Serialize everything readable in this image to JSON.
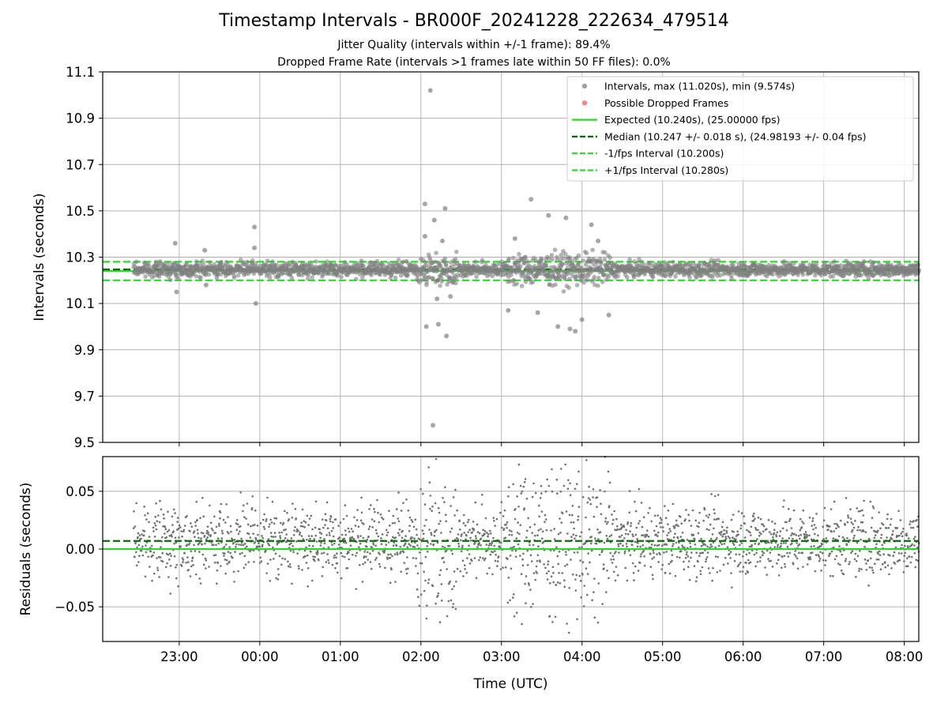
{
  "title": "Timestamp Intervals - BR000F_20241228_222634_479514",
  "subtitle_lines": [
    "Jitter Quality (intervals within +/-1 frame): 89.4%",
    "Dropped Frame Rate (intervals >1 frames late within 50 FF files): 0.0%"
  ],
  "chart_data": [
    {
      "type": "scatter",
      "panel": "intervals",
      "ylabel": "Intervals (seconds)",
      "xlabel": "",
      "ylim": [
        9.5,
        11.1
      ],
      "yticks": [
        "9.5",
        "9.7",
        "9.9",
        "10.1",
        "10.3",
        "10.5",
        "10.7",
        "10.9",
        "11.1"
      ],
      "xlim_hours": [
        -1.95,
        8.18
      ],
      "xticks_labels": [
        "23:00",
        "00:00",
        "01:00",
        "02:00",
        "03:00",
        "04:00",
        "05:00",
        "06:00",
        "07:00",
        "08:00"
      ],
      "grid": true,
      "legend_position": "top-right",
      "series": [
        {
          "name": "Intervals, max (11.020s), min (9.574s)",
          "kind": "points",
          "color": "#808080",
          "baseline_band": [
            10.205,
            10.285
          ],
          "start_time": "22:26",
          "end_time": "08:11",
          "mean_interval_s": 10.247,
          "visible_outliers": [
            {
              "t": "22:57",
              "y": 10.36
            },
            {
              "t": "22:58",
              "y": 10.15
            },
            {
              "t": "23:19",
              "y": 10.33
            },
            {
              "t": "23:20",
              "y": 10.18
            },
            {
              "t": "23:56",
              "y": 10.34
            },
            {
              "t": "23:56",
              "y": 10.43
            },
            {
              "t": "23:57",
              "y": 10.1
            },
            {
              "t": "02:03",
              "y": 10.39
            },
            {
              "t": "02:03",
              "y": 10.53
            },
            {
              "t": "02:04",
              "y": 10.0
            },
            {
              "t": "02:07",
              "y": 11.02
            },
            {
              "t": "02:10",
              "y": 10.46
            },
            {
              "t": "02:13",
              "y": 10.01
            },
            {
              "t": "02:18",
              "y": 10.51
            },
            {
              "t": "02:19",
              "y": 9.96
            },
            {
              "t": "02:09",
              "y": 9.574
            },
            {
              "t": "02:12",
              "y": 10.12
            },
            {
              "t": "02:16",
              "y": 10.37
            },
            {
              "t": "02:22",
              "y": 10.13
            },
            {
              "t": "03:22",
              "y": 10.55
            },
            {
              "t": "03:35",
              "y": 10.48
            },
            {
              "t": "03:48",
              "y": 10.47
            },
            {
              "t": "03:51",
              "y": 9.99
            },
            {
              "t": "03:55",
              "y": 9.98
            },
            {
              "t": "03:42",
              "y": 10.0
            },
            {
              "t": "04:00",
              "y": 10.03
            },
            {
              "t": "04:07",
              "y": 10.44
            },
            {
              "t": "04:12",
              "y": 10.37
            },
            {
              "t": "04:20",
              "y": 10.05
            },
            {
              "t": "03:27",
              "y": 10.06
            },
            {
              "t": "03:10",
              "y": 10.38
            },
            {
              "t": "03:05",
              "y": 10.07
            }
          ]
        },
        {
          "name": "Possible Dropped Frames",
          "kind": "points",
          "color": "#f0605a",
          "count": 0
        },
        {
          "name": "Expected (10.240s), (25.00000 fps)",
          "kind": "hline",
          "y": 10.24,
          "color": "#20e020",
          "style": "solid"
        },
        {
          "name": "Median (10.247 +/- 0.018 s), (24.98193 +/- 0.04 fps)",
          "kind": "hline",
          "y": 10.247,
          "color": "#007000",
          "style": "dashed"
        },
        {
          "name": "-1/fps Interval (10.200s)",
          "kind": "hline",
          "y": 10.2,
          "color": "#20e020",
          "style": "dashed"
        },
        {
          "name": "+1/fps Interval (10.280s)",
          "kind": "hline",
          "y": 10.28,
          "color": "#20e020",
          "style": "dashed"
        }
      ]
    },
    {
      "type": "scatter",
      "panel": "residuals",
      "ylabel": "Residuals (seconds)",
      "xlabel": "Time (UTC)",
      "ylim": [
        -0.08,
        0.08
      ],
      "yticks": [
        "−0.05",
        "0.00",
        "0.05"
      ],
      "ytick_values": [
        -0.05,
        0.0,
        0.05
      ],
      "xticks_labels": [
        "23:00",
        "00:00",
        "01:00",
        "02:00",
        "03:00",
        "04:00",
        "05:00",
        "06:00",
        "07:00",
        "08:00"
      ],
      "grid": true,
      "series": [
        {
          "kind": "points",
          "color": "#707070",
          "typical_spread_s": 0.02,
          "turbulent_spread_s": 0.045
        },
        {
          "kind": "hline",
          "y": 0.0,
          "color": "#20e020",
          "style": "solid"
        },
        {
          "kind": "hline",
          "y": 0.007,
          "color": "#007000",
          "style": "dashed"
        }
      ]
    }
  ]
}
